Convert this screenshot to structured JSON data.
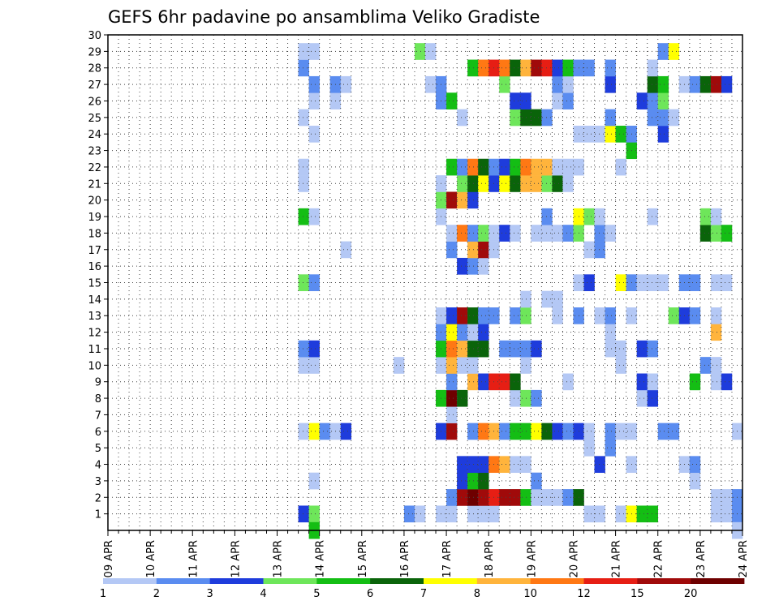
{
  "chart_data": {
    "type": "heatmap",
    "title": "GEFS 6hr padavine po ansamblima Veliko Gradiste",
    "xlabel": "",
    "ylabel": "",
    "x_tick_labels": [
      "09 APR",
      "10 APR",
      "11 APR",
      "12 APR",
      "13 APR",
      "14 APR",
      "15 APR",
      "16 APR",
      "17 APR",
      "18 APR",
      "19 APR",
      "20 APR",
      "21 APR",
      "22 APR",
      "23 APR",
      "24 APR"
    ],
    "y_tick_labels": [
      "1",
      "2",
      "3",
      "4",
      "5",
      "6",
      "7",
      "8",
      "9",
      "10",
      "11",
      "12",
      "13",
      "14",
      "15",
      "16",
      "17",
      "18",
      "19",
      "20",
      "21",
      "22",
      "23",
      "24",
      "25",
      "26",
      "27",
      "28",
      "29",
      "30"
    ],
    "xlim_days": [
      0,
      15
    ],
    "ylim_members": [
      0,
      30
    ],
    "time_step_hours": 6,
    "grid": true,
    "legend_placement": "bottom",
    "legend_levels": [
      "1",
      "2",
      "3",
      "4",
      "5",
      "6",
      "7",
      "8",
      "10",
      "12",
      "15",
      "20"
    ],
    "colors": [
      "#b4c8f5",
      "#5a8cf0",
      "#1e3cdc",
      "#6ee65a",
      "#14be14",
      "#0a640a",
      "#ffff00",
      "#ffb43c",
      "#ff7814",
      "#e61e14",
      "#a00a0a",
      "#6e0000"
    ],
    "cells": [
      [
        13.5,
        1,
        3
      ],
      [
        13.75,
        1,
        4
      ],
      [
        16.0,
        1,
        2
      ],
      [
        16.25,
        1,
        1
      ],
      [
        16.75,
        1,
        1
      ],
      [
        17.0,
        1,
        1
      ],
      [
        17.5,
        1,
        1
      ],
      [
        17.75,
        1,
        1
      ],
      [
        18.0,
        1,
        1
      ],
      [
        20.25,
        1,
        1
      ],
      [
        20.5,
        1,
        1
      ],
      [
        21.0,
        1,
        1
      ],
      [
        21.25,
        1,
        7
      ],
      [
        21.5,
        1,
        5
      ],
      [
        21.75,
        1,
        5
      ],
      [
        23.25,
        1,
        1
      ],
      [
        23.5,
        1,
        1
      ],
      [
        23.75,
        1,
        2
      ],
      [
        23.75,
        0,
        1
      ],
      [
        13.75,
        0,
        5
      ],
      [
        17.0,
        2,
        2
      ],
      [
        17.25,
        2,
        11
      ],
      [
        17.5,
        2,
        12
      ],
      [
        17.75,
        2,
        11
      ],
      [
        18.0,
        2,
        10
      ],
      [
        18.25,
        2,
        11
      ],
      [
        18.5,
        2,
        11
      ],
      [
        18.75,
        2,
        5
      ],
      [
        19.0,
        2,
        1
      ],
      [
        19.25,
        2,
        1
      ],
      [
        19.5,
        2,
        1
      ],
      [
        19.75,
        2,
        2
      ],
      [
        20.0,
        2,
        6
      ],
      [
        23.25,
        2,
        1
      ],
      [
        23.5,
        2,
        1
      ],
      [
        23.75,
        2,
        2
      ],
      [
        13.75,
        3,
        1
      ],
      [
        17.25,
        3,
        3
      ],
      [
        17.5,
        3,
        5
      ],
      [
        17.75,
        3,
        6
      ],
      [
        19.0,
        3,
        2
      ],
      [
        22.75,
        3,
        1
      ],
      [
        17.25,
        4,
        3
      ],
      [
        17.5,
        4,
        3
      ],
      [
        17.75,
        4,
        3
      ],
      [
        18.0,
        4,
        9
      ],
      [
        18.25,
        4,
        8
      ],
      [
        18.5,
        4,
        1
      ],
      [
        18.75,
        4,
        1
      ],
      [
        20.5,
        4,
        3
      ],
      [
        21.25,
        4,
        1
      ],
      [
        22.5,
        4,
        1
      ],
      [
        22.75,
        4,
        2
      ],
      [
        20.25,
        5,
        1
      ],
      [
        20.75,
        5,
        2
      ],
      [
        13.5,
        6,
        1
      ],
      [
        13.75,
        6,
        7
      ],
      [
        14.0,
        6,
        2
      ],
      [
        14.25,
        6,
        1
      ],
      [
        14.5,
        6,
        3
      ],
      [
        16.75,
        6,
        3
      ],
      [
        17.0,
        6,
        11
      ],
      [
        17.5,
        6,
        2
      ],
      [
        17.75,
        6,
        9
      ],
      [
        18.0,
        6,
        8
      ],
      [
        18.25,
        6,
        2
      ],
      [
        18.5,
        6,
        5
      ],
      [
        18.75,
        6,
        5
      ],
      [
        19.0,
        6,
        7
      ],
      [
        19.25,
        6,
        6
      ],
      [
        19.5,
        6,
        3
      ],
      [
        19.75,
        6,
        2
      ],
      [
        20.0,
        6,
        3
      ],
      [
        20.25,
        6,
        1
      ],
      [
        20.75,
        6,
        2
      ],
      [
        21.0,
        6,
        1
      ],
      [
        21.25,
        6,
        1
      ],
      [
        22.0,
        6,
        2
      ],
      [
        22.25,
        6,
        2
      ],
      [
        23.75,
        6,
        1
      ],
      [
        17.0,
        7,
        1
      ],
      [
        16.75,
        8,
        5
      ],
      [
        17.0,
        8,
        12
      ],
      [
        17.25,
        8,
        6
      ],
      [
        18.5,
        8,
        1
      ],
      [
        18.75,
        8,
        4
      ],
      [
        19.0,
        8,
        2
      ],
      [
        21.5,
        8,
        1
      ],
      [
        21.75,
        8,
        3
      ],
      [
        17.0,
        9,
        2
      ],
      [
        17.5,
        9,
        8
      ],
      [
        17.75,
        9,
        3
      ],
      [
        18.0,
        9,
        10
      ],
      [
        18.25,
        9,
        10
      ],
      [
        18.5,
        9,
        6
      ],
      [
        19.75,
        9,
        1
      ],
      [
        21.5,
        9,
        3
      ],
      [
        21.75,
        9,
        1
      ],
      [
        22.75,
        9,
        5
      ],
      [
        23.25,
        9,
        1
      ],
      [
        23.5,
        9,
        3
      ],
      [
        13.5,
        10,
        1
      ],
      [
        13.75,
        10,
        1
      ],
      [
        15.75,
        10,
        1
      ],
      [
        16.75,
        10,
        1
      ],
      [
        17.0,
        10,
        8
      ],
      [
        17.25,
        10,
        1
      ],
      [
        17.5,
        10,
        1
      ],
      [
        18.75,
        10,
        1
      ],
      [
        21.0,
        10,
        1
      ],
      [
        23.0,
        10,
        2
      ],
      [
        23.25,
        10,
        1
      ],
      [
        13.5,
        11,
        2
      ],
      [
        13.75,
        11,
        3
      ],
      [
        16.75,
        11,
        5
      ],
      [
        17.0,
        11,
        9
      ],
      [
        17.25,
        11,
        8
      ],
      [
        17.5,
        11,
        6
      ],
      [
        17.75,
        11,
        6
      ],
      [
        18.25,
        11,
        2
      ],
      [
        18.5,
        11,
        2
      ],
      [
        18.75,
        11,
        2
      ],
      [
        19.0,
        11,
        3
      ],
      [
        20.75,
        11,
        1
      ],
      [
        21.0,
        11,
        1
      ],
      [
        21.5,
        11,
        3
      ],
      [
        21.75,
        11,
        2
      ],
      [
        16.75,
        12,
        2
      ],
      [
        17.0,
        12,
        7
      ],
      [
        17.25,
        12,
        2
      ],
      [
        17.5,
        12,
        1
      ],
      [
        17.75,
        12,
        3
      ],
      [
        20.75,
        12,
        1
      ],
      [
        23.25,
        12,
        8
      ],
      [
        16.75,
        13,
        1
      ],
      [
        17.0,
        13,
        3
      ],
      [
        17.25,
        13,
        11
      ],
      [
        17.5,
        13,
        6
      ],
      [
        17.75,
        13,
        2
      ],
      [
        18.0,
        13,
        2
      ],
      [
        18.5,
        13,
        2
      ],
      [
        18.75,
        13,
        4
      ],
      [
        19.5,
        13,
        1
      ],
      [
        20.0,
        13,
        2
      ],
      [
        20.5,
        13,
        1
      ],
      [
        20.75,
        13,
        2
      ],
      [
        21.25,
        13,
        1
      ],
      [
        22.25,
        13,
        4
      ],
      [
        22.5,
        13,
        3
      ],
      [
        22.75,
        13,
        2
      ],
      [
        23.25,
        13,
        1
      ],
      [
        18.75,
        14,
        1
      ],
      [
        19.25,
        14,
        1
      ],
      [
        19.5,
        14,
        1
      ],
      [
        13.5,
        15,
        4
      ],
      [
        13.75,
        15,
        2
      ],
      [
        20.0,
        15,
        1
      ],
      [
        20.25,
        15,
        3
      ],
      [
        21.0,
        15,
        7
      ],
      [
        21.25,
        15,
        2
      ],
      [
        21.5,
        15,
        1
      ],
      [
        21.75,
        15,
        1
      ],
      [
        22.0,
        15,
        1
      ],
      [
        22.5,
        15,
        2
      ],
      [
        22.75,
        15,
        2
      ],
      [
        23.25,
        15,
        1
      ],
      [
        23.5,
        15,
        1
      ],
      [
        17.25,
        16,
        3
      ],
      [
        17.5,
        16,
        2
      ],
      [
        17.75,
        16,
        1
      ],
      [
        14.5,
        17,
        1
      ],
      [
        17.0,
        17,
        2
      ],
      [
        17.5,
        17,
        8
      ],
      [
        17.75,
        17,
        11
      ],
      [
        18.0,
        17,
        1
      ],
      [
        20.25,
        17,
        1
      ],
      [
        20.5,
        17,
        2
      ],
      [
        17.0,
        18,
        1
      ],
      [
        17.25,
        18,
        9
      ],
      [
        17.5,
        18,
        2
      ],
      [
        17.75,
        18,
        4
      ],
      [
        18.0,
        18,
        1
      ],
      [
        18.25,
        18,
        3
      ],
      [
        18.5,
        18,
        1
      ],
      [
        19.0,
        18,
        1
      ],
      [
        19.25,
        18,
        1
      ],
      [
        19.5,
        18,
        1
      ],
      [
        19.75,
        18,
        2
      ],
      [
        20.0,
        18,
        4
      ],
      [
        20.5,
        18,
        2
      ],
      [
        20.75,
        18,
        1
      ],
      [
        23.0,
        18,
        6
      ],
      [
        23.25,
        18,
        4
      ],
      [
        23.5,
        18,
        5
      ],
      [
        13.5,
        19,
        5
      ],
      [
        13.75,
        19,
        1
      ],
      [
        16.75,
        19,
        1
      ],
      [
        19.25,
        19,
        2
      ],
      [
        20.0,
        19,
        7
      ],
      [
        20.25,
        19,
        4
      ],
      [
        20.5,
        19,
        1
      ],
      [
        21.75,
        19,
        1
      ],
      [
        23.0,
        19,
        4
      ],
      [
        23.25,
        19,
        1
      ],
      [
        16.75,
        20,
        4
      ],
      [
        17.0,
        20,
        11
      ],
      [
        17.25,
        20,
        8
      ],
      [
        17.5,
        20,
        3
      ],
      [
        13.5,
        21,
        1
      ],
      [
        16.75,
        21,
        1
      ],
      [
        17.25,
        21,
        4
      ],
      [
        17.5,
        21,
        6
      ],
      [
        17.75,
        21,
        7
      ],
      [
        18.0,
        21,
        3
      ],
      [
        18.25,
        21,
        7
      ],
      [
        18.5,
        21,
        6
      ],
      [
        18.75,
        21,
        8
      ],
      [
        19.0,
        21,
        8
      ],
      [
        19.25,
        21,
        4
      ],
      [
        19.5,
        21,
        6
      ],
      [
        19.75,
        21,
        1
      ],
      [
        13.5,
        22,
        1
      ],
      [
        17.0,
        22,
        5
      ],
      [
        17.25,
        22,
        2
      ],
      [
        17.5,
        22,
        9
      ],
      [
        17.75,
        22,
        6
      ],
      [
        18.0,
        22,
        2
      ],
      [
        18.25,
        22,
        3
      ],
      [
        18.5,
        22,
        5
      ],
      [
        18.75,
        22,
        9
      ],
      [
        19.0,
        22,
        8
      ],
      [
        19.25,
        22,
        8
      ],
      [
        19.5,
        22,
        1
      ],
      [
        19.75,
        22,
        1
      ],
      [
        20.0,
        22,
        1
      ],
      [
        21.0,
        22,
        1
      ],
      [
        21.25,
        23,
        5
      ],
      [
        13.75,
        24,
        1
      ],
      [
        20.0,
        24,
        1
      ],
      [
        20.25,
        24,
        1
      ],
      [
        20.5,
        24,
        1
      ],
      [
        20.75,
        24,
        7
      ],
      [
        21.0,
        24,
        5
      ],
      [
        21.25,
        24,
        2
      ],
      [
        22.0,
        24,
        3
      ],
      [
        13.5,
        25,
        1
      ],
      [
        17.25,
        25,
        1
      ],
      [
        18.5,
        25,
        4
      ],
      [
        18.75,
        25,
        6
      ],
      [
        19.0,
        25,
        6
      ],
      [
        19.25,
        25,
        2
      ],
      [
        20.75,
        25,
        2
      ],
      [
        21.75,
        25,
        2
      ],
      [
        22.0,
        25,
        2
      ],
      [
        22.25,
        25,
        1
      ],
      [
        13.75,
        26,
        1
      ],
      [
        14.25,
        26,
        1
      ],
      [
        16.75,
        26,
        2
      ],
      [
        17.0,
        26,
        5
      ],
      [
        18.5,
        26,
        3
      ],
      [
        18.75,
        26,
        3
      ],
      [
        19.5,
        26,
        1
      ],
      [
        19.75,
        26,
        2
      ],
      [
        21.5,
        26,
        3
      ],
      [
        21.75,
        26,
        2
      ],
      [
        22.0,
        26,
        4
      ],
      [
        13.75,
        27,
        2
      ],
      [
        14.25,
        27,
        2
      ],
      [
        14.5,
        27,
        1
      ],
      [
        16.5,
        27,
        1
      ],
      [
        16.75,
        27,
        2
      ],
      [
        18.25,
        27,
        4
      ],
      [
        19.5,
        27,
        2
      ],
      [
        19.75,
        27,
        1
      ],
      [
        20.75,
        27,
        3
      ],
      [
        21.75,
        27,
        6
      ],
      [
        22.0,
        27,
        5
      ],
      [
        22.5,
        27,
        1
      ],
      [
        22.75,
        27,
        2
      ],
      [
        23.0,
        27,
        6
      ],
      [
        23.25,
        27,
        11
      ],
      [
        23.5,
        27,
        3
      ],
      [
        13.5,
        28,
        2
      ],
      [
        17.5,
        28,
        5
      ],
      [
        17.75,
        28,
        9
      ],
      [
        18.0,
        28,
        10
      ],
      [
        18.25,
        28,
        9
      ],
      [
        18.5,
        28,
        6
      ],
      [
        18.75,
        28,
        8
      ],
      [
        19.0,
        28,
        11
      ],
      [
        19.25,
        28,
        10
      ],
      [
        19.5,
        28,
        3
      ],
      [
        19.75,
        28,
        5
      ],
      [
        20.0,
        28,
        2
      ],
      [
        20.25,
        28,
        2
      ],
      [
        20.75,
        28,
        2
      ],
      [
        21.75,
        28,
        1
      ],
      [
        13.5,
        29,
        1
      ],
      [
        13.75,
        29,
        1
      ],
      [
        16.25,
        29,
        4
      ],
      [
        16.5,
        29,
        1
      ],
      [
        22.0,
        29,
        2
      ],
      [
        22.25,
        29,
        7
      ]
    ]
  }
}
